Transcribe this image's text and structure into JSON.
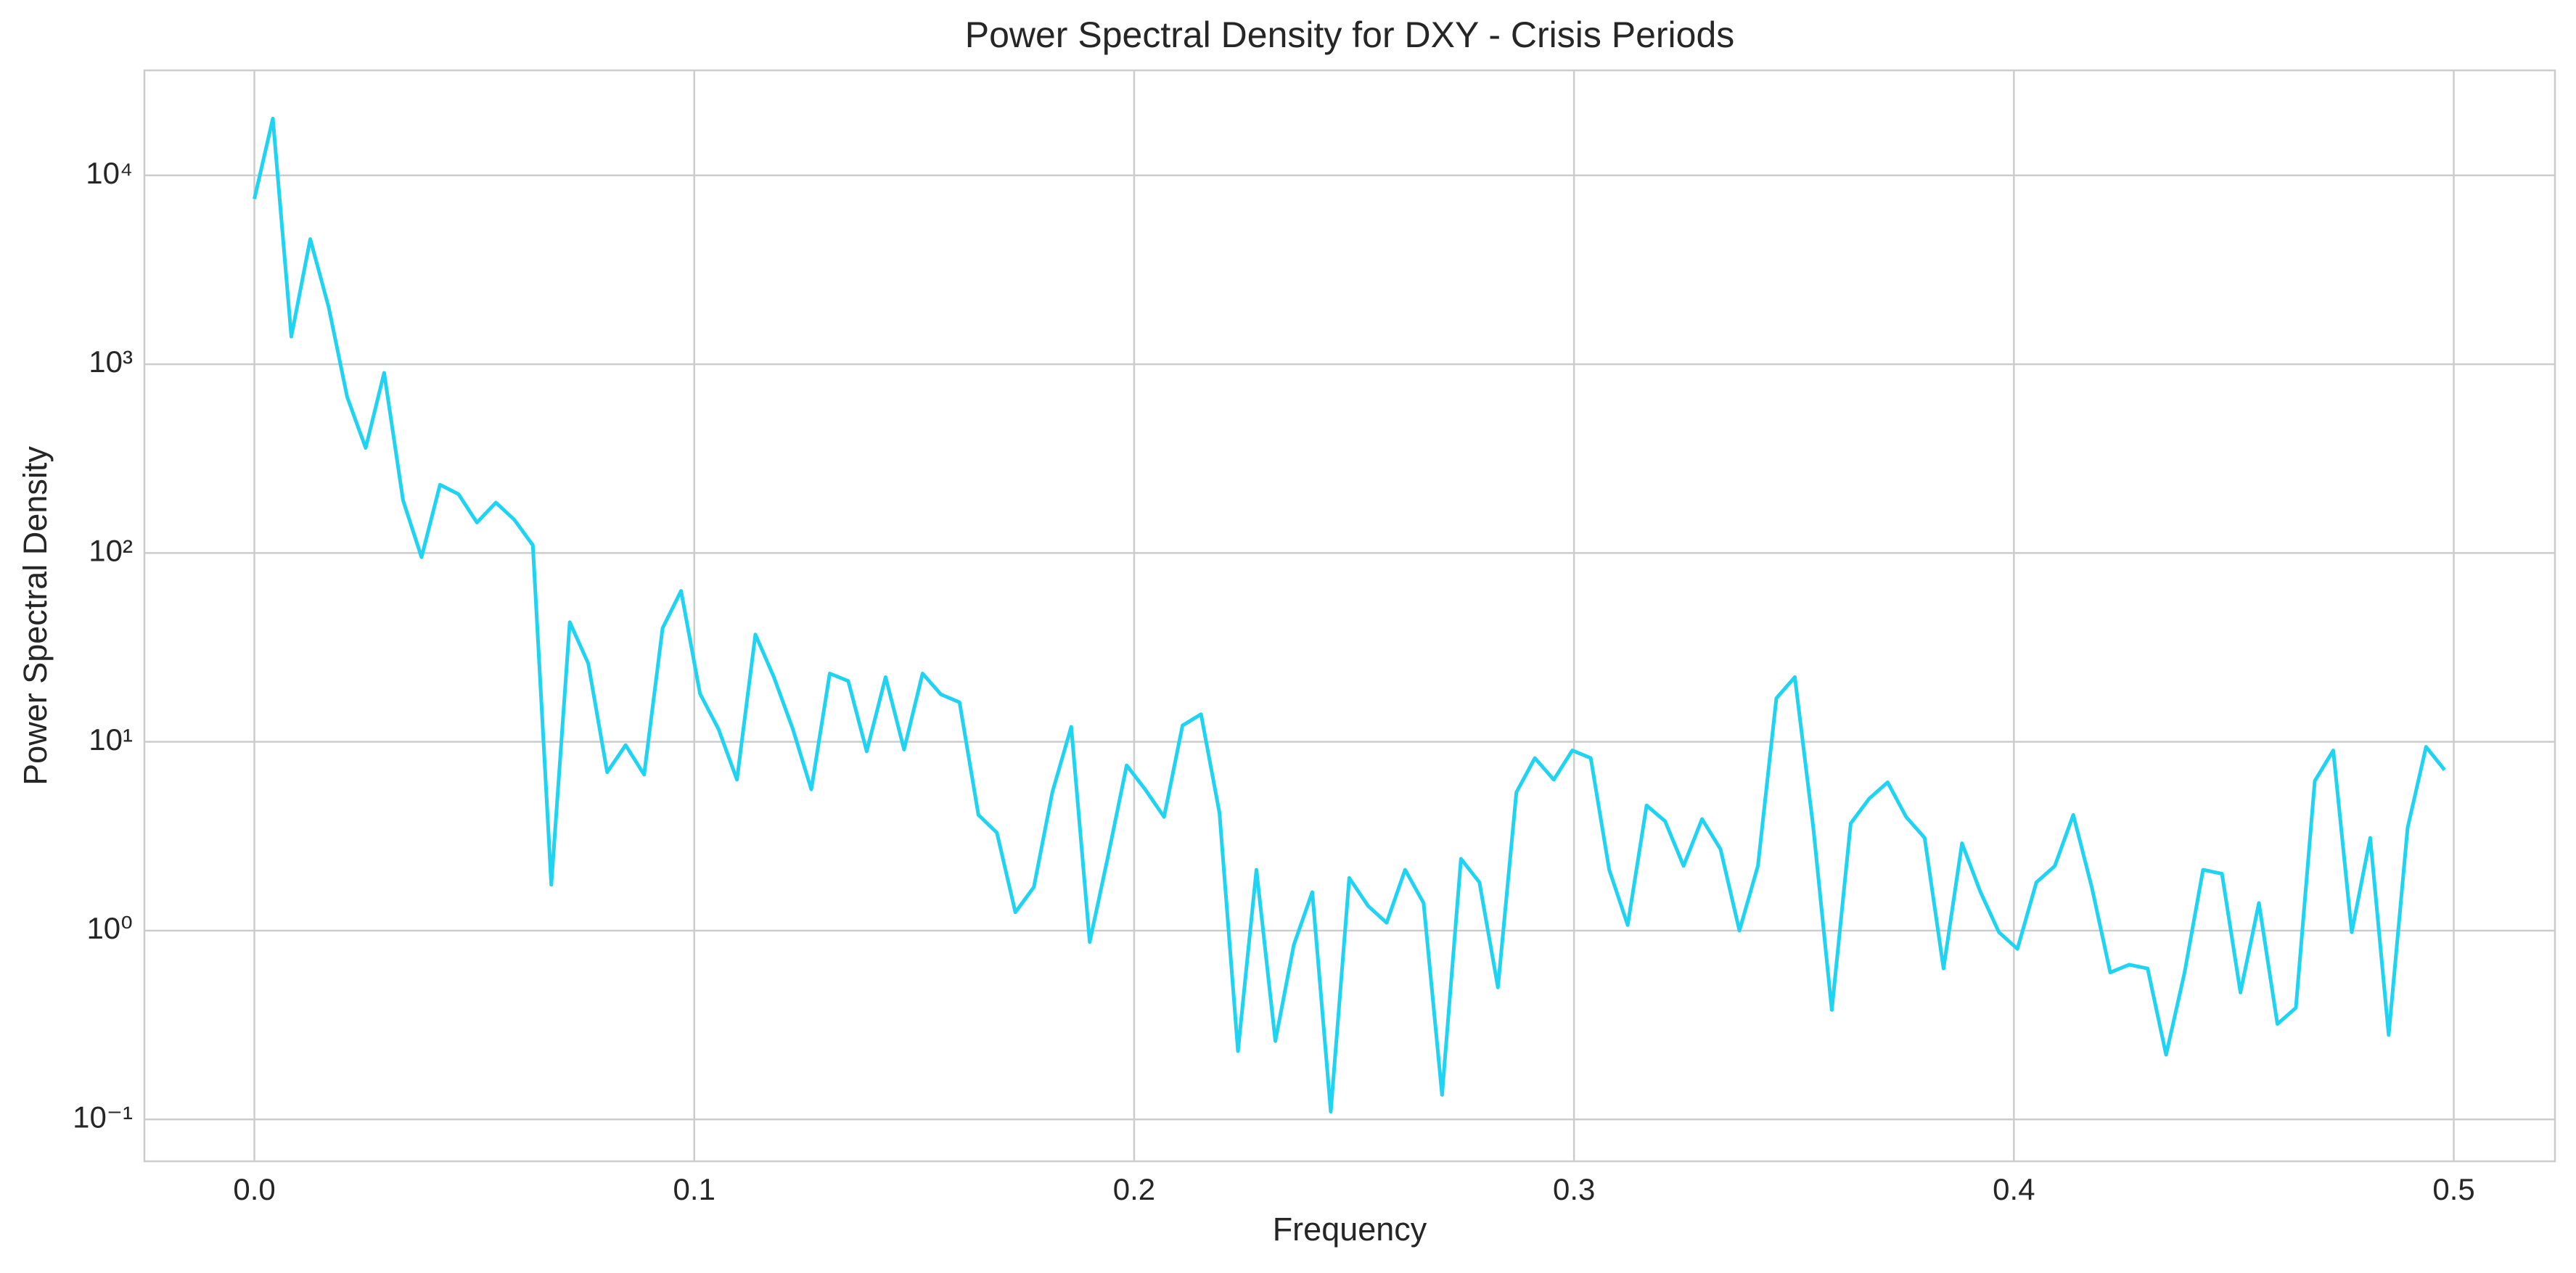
{
  "chart_data": {
    "type": "line",
    "title": "Power Spectral Density for DXY - Crisis Periods",
    "x_label": "Frequency",
    "y_label": "Power Spectral Density",
    "color": "#1fd3f3",
    "log_y": true,
    "grid": true,
    "xlim": [
      -0.025,
      0.523
    ],
    "ylim": [
      0.06,
      36000
    ],
    "xticks": [
      {
        "value": 0,
        "label": "0.0"
      },
      0.1,
      0.2,
      0.3,
      0.4,
      0.5
    ],
    "yticks": [
      {
        "value": 0.1,
        "label": "10⁻¹"
      },
      {
        "value": 1,
        "label": "10⁰"
      },
      {
        "value": 10,
        "label": "10¹"
      },
      {
        "value": 100,
        "label": "10²"
      },
      {
        "value": 1000,
        "label": "10³"
      },
      {
        "value": 10000,
        "label": "10⁴"
      }
    ],
    "x": [
      0,
      0.0042,
      0.0084,
      0.0127,
      0.0169,
      0.0211,
      0.0253,
      0.0295,
      0.0338,
      0.038,
      0.0422,
      0.0464,
      0.0506,
      0.0549,
      0.0591,
      0.0633,
      0.0675,
      0.0717,
      0.0759,
      0.0802,
      0.0844,
      0.0886,
      0.0928,
      0.097,
      0.1013,
      0.1055,
      0.1097,
      0.1139,
      0.1181,
      0.1224,
      0.1266,
      0.1308,
      0.135,
      0.1392,
      0.1435,
      0.1477,
      0.1519,
      0.1561,
      0.1603,
      0.1646,
      0.1688,
      0.173,
      0.1772,
      0.1814,
      0.1857,
      0.1899,
      0.1941,
      0.1983,
      0.2025,
      0.2068,
      0.211,
      0.2152,
      0.2194,
      0.2236,
      0.2278,
      0.2321,
      0.2363,
      0.2405,
      0.2447,
      0.2489,
      0.2532,
      0.2574,
      0.2616,
      0.2658,
      0.27,
      0.2743,
      0.2785,
      0.2827,
      0.2869,
      0.2911,
      0.2954,
      0.2996,
      0.3038,
      0.308,
      0.3122,
      0.3165,
      0.3207,
      0.3249,
      0.3291,
      0.3333,
      0.3376,
      0.3418,
      0.346,
      0.3502,
      0.3544,
      0.3586,
      0.3629,
      0.3671,
      0.3713,
      0.3755,
      0.3797,
      0.384,
      0.3882,
      0.3924,
      0.3966,
      0.4008,
      0.4051,
      0.4093,
      0.4135,
      0.4177,
      0.4219,
      0.4262,
      0.4304,
      0.4346,
      0.4388,
      0.443,
      0.4473,
      0.4515,
      0.4557,
      0.4599,
      0.4641,
      0.4684,
      0.4726,
      0.4768,
      0.481,
      0.4852,
      0.4895,
      0.4937,
      0.4979
    ],
    "values": [
      7500,
      20000,
      1400,
      4600,
      2000,
      670,
      360,
      900,
      190,
      95,
      230,
      205,
      145,
      185,
      150,
      110,
      1.75,
      43,
      26,
      6.9,
      9.6,
      6.7,
      40,
      63,
      18,
      11.7,
      6.3,
      37,
      22,
      11.7,
      5.6,
      23,
      21,
      8.9,
      22,
      9.1,
      23,
      17.8,
      16.2,
      4.1,
      3.3,
      1.25,
      1.7,
      5.4,
      12,
      0.87,
      2.5,
      7.5,
      5.6,
      4.0,
      12.2,
      14,
      4.2,
      0.23,
      2.1,
      0.26,
      0.84,
      1.6,
      0.11,
      1.9,
      1.35,
      1.1,
      2.1,
      1.4,
      0.135,
      2.4,
      1.8,
      0.5,
      5.4,
      8.2,
      6.3,
      9.0,
      8.2,
      2.1,
      1.07,
      4.6,
      3.8,
      2.2,
      3.9,
      2.7,
      1.0,
      2.2,
      17,
      22,
      3.5,
      0.38,
      3.7,
      5.0,
      6.1,
      4.0,
      3.1,
      0.63,
      2.9,
      1.6,
      0.98,
      0.8,
      1.8,
      2.2,
      4.1,
      1.7,
      0.6,
      0.66,
      0.63,
      0.22,
      0.6,
      2.1,
      2.0,
      0.47,
      1.4,
      0.32,
      0.39,
      6.2,
      9.0,
      0.98,
      3.1,
      0.28,
      3.5,
      9.4,
      7.1
    ]
  }
}
